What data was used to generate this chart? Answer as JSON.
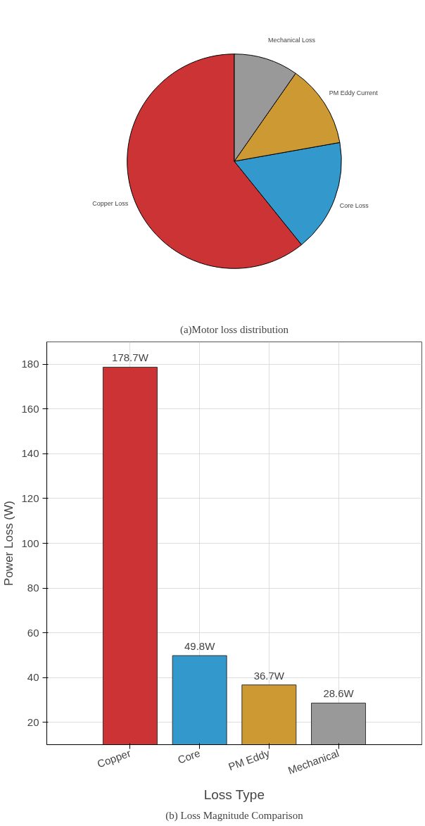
{
  "chart_data": [
    {
      "type": "pie",
      "categories": [
        "Copper Loss",
        "Core Loss",
        "PM Eddy Current",
        "Mechanical Loss"
      ],
      "values": [
        60.8,
        17.0,
        12.5,
        9.7
      ],
      "colors": [
        "#cb3335",
        "#3399cc",
        "#cc9933",
        "#999999"
      ],
      "annotations": [
        "(a)Motor loss distribution"
      ]
    },
    {
      "type": "bar",
      "categories": [
        "Copper",
        "Core",
        "PM Eddy",
        "Mechanical"
      ],
      "values": [
        178.7,
        49.8,
        36.7,
        28.6
      ],
      "colors": [
        "#cb3335",
        "#3399cc",
        "#cc9933",
        "#999999"
      ],
      "value_labels": [
        "178.7W",
        "49.8W",
        "36.7W",
        "28.6W"
      ],
      "xlabel": "Loss Type",
      "ylabel": "Power Loss (W)",
      "ylim": [
        10,
        190
      ],
      "yticks": [
        20,
        40,
        60,
        80,
        100,
        120,
        140,
        160,
        180
      ],
      "grid": true,
      "annotations": [
        "(b) Loss Magnitude Comparison"
      ]
    }
  ]
}
